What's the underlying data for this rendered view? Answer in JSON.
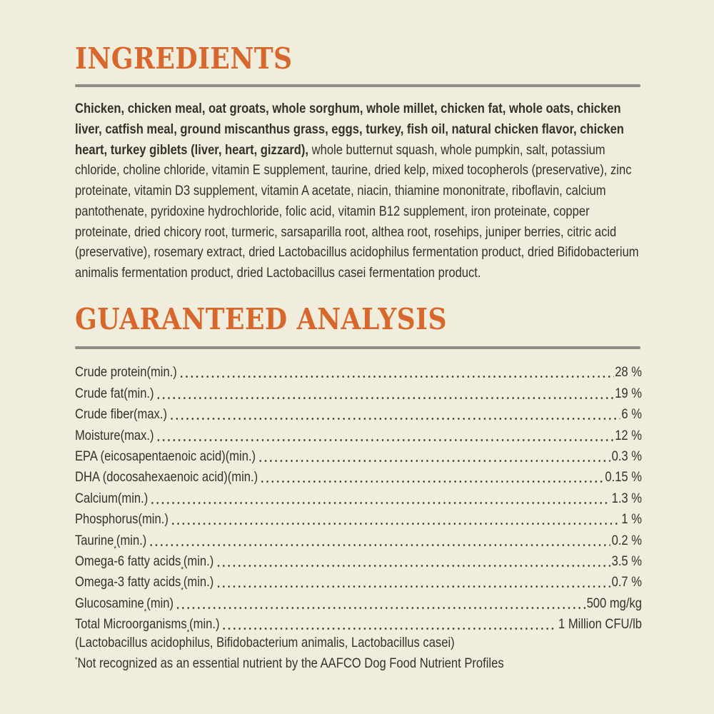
{
  "page": {
    "background_color": "#f0eddc",
    "accent_color": "#d7672c",
    "rule_color": "#8d8c84",
    "text_color": "#33322b"
  },
  "ingredients": {
    "title": "INGREDIENTS",
    "bold_text": "Chicken, chicken meal, oat groats, whole sorghum, whole millet, chicken fat, whole oats, chicken liver, catfish meal, ground miscanthus grass, eggs, turkey, fish oil, natural chicken flavor, chicken heart, turkey giblets (liver, heart, gizzard),",
    "regular_text": " whole butternut squash, whole pumpkin, salt, potassium chloride, choline chloride, vitamin E supplement, taurine, dried kelp, mixed tocopherols (preservative), zinc proteinate, vitamin D3 supplement, vitamin A acetate, niacin, thiamine mononitrate, riboflavin, calcium pantothenate, pyridoxine hydrochloride, folic acid, vitamin B12 supplement, iron proteinate, copper proteinate, dried chicory root, turmeric, sarsaparilla root, althea root, rosehips, juniper berries, citric acid (preservative), rosemary extract, dried Lactobacillus acidophilus fermentation product, dried Bifidobacterium animalis fermentation product, dried Lactobacillus casei fermentation product."
  },
  "analysis": {
    "title": "GUARANTEED ANALYSIS",
    "rows": [
      {
        "name": "Crude protein",
        "mark": "",
        "qualifier": " (min.)",
        "value": "28 %"
      },
      {
        "name": "Crude fat",
        "mark": "",
        "qualifier": " (min.)",
        "value": "19 %"
      },
      {
        "name": "Crude fiber",
        "mark": "",
        "qualifier": " (max.)",
        "value": "6 %"
      },
      {
        "name": "Moisture",
        "mark": "",
        "qualifier": " (max.)",
        "value": "12 %"
      },
      {
        "name": "EPA (eicosapentaenoic acid)",
        "mark": "",
        "qualifier": " (min.)",
        "value": "0.3 %"
      },
      {
        "name": "DHA (docosahexaenoic acid)",
        "mark": "",
        "qualifier": " (min.)",
        "value": "0.15 %"
      },
      {
        "name": "Calcium",
        "mark": "",
        "qualifier": " (min.)",
        "value": "1.3 %"
      },
      {
        "name": "Phosphorus",
        "mark": "",
        "qualifier": " (min.)",
        "value": "1 %"
      },
      {
        "name": "Taurine",
        "mark": "*",
        "qualifier": " (min.)",
        "value": "0.2 %"
      },
      {
        "name": "Omega-6 fatty acids",
        "mark": "*",
        "qualifier": " (min.)",
        "value": "3.5 %"
      },
      {
        "name": "Omega-3 fatty acids",
        "mark": "*",
        "qualifier": " (min.)",
        "value": "0.7 %"
      },
      {
        "name": "Glucosamine",
        "mark": "*",
        "qualifier": " (min)",
        "value": "500 mg/kg"
      },
      {
        "name": "Total Microorganisms",
        "mark": "*",
        "qualifier": " (min.)",
        "value": "1 Million CFU/lb"
      }
    ],
    "microorganisms_detail": "(Lactobacillus acidophilus, Bifidobacterium animalis, Lactobacillus casei)",
    "footnote_mark": "*",
    "footnote_text": "Not recognized as an essential nutrient by the AAFCO Dog Food Nutrient Profiles"
  }
}
